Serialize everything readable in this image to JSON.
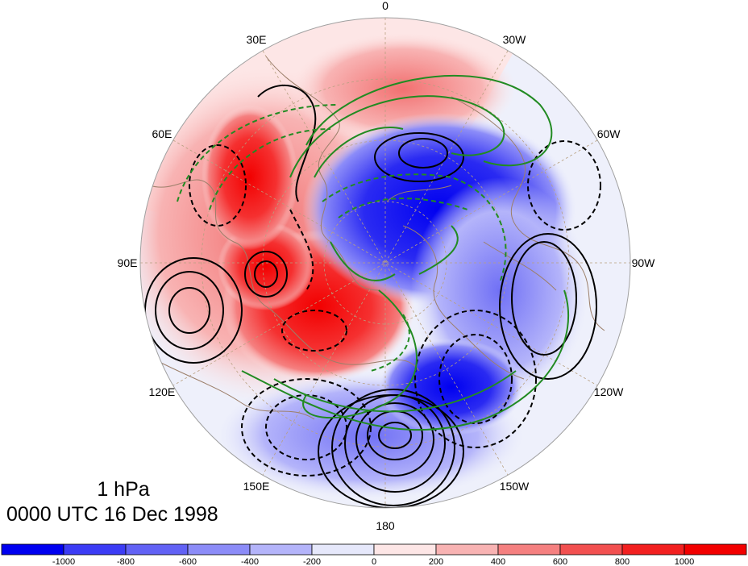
{
  "map": {
    "projection": "north-polar-stereographic",
    "meridian_labels": [
      {
        "text": "0",
        "lon": 0
      },
      {
        "text": "30W",
        "lon": -30
      },
      {
        "text": "60W",
        "lon": -60
      },
      {
        "text": "90W",
        "lon": -90
      },
      {
        "text": "120W",
        "lon": -120
      },
      {
        "text": "150W",
        "lon": -150
      },
      {
        "text": "180",
        "lon": 180
      },
      {
        "text": "150E",
        "lon": 150
      },
      {
        "text": "120E",
        "lon": 120
      },
      {
        "text": "90E",
        "lon": 90
      },
      {
        "text": "60E",
        "lon": 60
      },
      {
        "text": "30E",
        "lon": 30
      }
    ],
    "coastline_color": "#9c7f6a",
    "grid_color": "#b8a080"
  },
  "caption": {
    "level": "1 hPa",
    "time": "0000 UTC 16 Dec 1998"
  },
  "colorbar": {
    "ticks": [
      "-1000",
      "-800",
      "-600",
      "-400",
      "-200",
      "0",
      "200",
      "400",
      "600",
      "800",
      "1000"
    ],
    "colors": [
      "#0000f0",
      "#3c3cf5",
      "#6262f5",
      "#8c8cf8",
      "#b4b4fa",
      "#e6e8fb",
      "#fde6e6",
      "#f8b3b3",
      "#f58080",
      "#f25050",
      "#f22020",
      "#f20000"
    ]
  },
  "contour_colors": {
    "black": "#000000",
    "green": "#228b22"
  }
}
